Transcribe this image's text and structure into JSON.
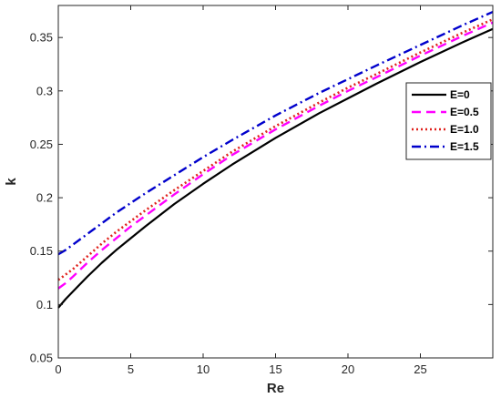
{
  "chart_data": {
    "type": "line",
    "xlabel": "Re",
    "ylabel": "k",
    "xlim": [
      0,
      30
    ],
    "ylim": [
      0.05,
      0.38
    ],
    "xticks": [
      0,
      5,
      10,
      15,
      20,
      25
    ],
    "yticks": [
      0.05,
      0.1,
      0.15,
      0.2,
      0.25,
      0.3,
      0.35
    ],
    "ytick_labels": [
      "0.05",
      "0.1",
      "0.15",
      "0.2",
      "0.25",
      "0.3",
      "0.35"
    ],
    "grid": false,
    "legend_position": "top-right",
    "x": [
      0,
      0.5,
      1,
      2,
      3,
      4,
      5,
      6,
      8,
      10,
      12,
      15,
      18,
      20,
      22,
      25,
      28,
      30
    ],
    "series": [
      {
        "name": "E=0",
        "color": "#000000",
        "dash": "solid",
        "values": [
          0.097,
          0.105,
          0.112,
          0.126,
          0.139,
          0.151,
          0.162,
          0.173,
          0.194,
          0.213,
          0.231,
          0.256,
          0.279,
          0.293,
          0.307,
          0.327,
          0.346,
          0.358
        ]
      },
      {
        "name": "E=0.5",
        "color": "#ff00ff",
        "dash": "dashed",
        "values": [
          0.115,
          0.12,
          0.126,
          0.139,
          0.151,
          0.162,
          0.173,
          0.183,
          0.203,
          0.222,
          0.24,
          0.264,
          0.286,
          0.3,
          0.313,
          0.333,
          0.352,
          0.364
        ]
      },
      {
        "name": "E=1.0",
        "color": "#e0201c",
        "dash": "dotted",
        "values": [
          0.123,
          0.128,
          0.133,
          0.145,
          0.157,
          0.168,
          0.178,
          0.188,
          0.207,
          0.225,
          0.243,
          0.267,
          0.289,
          0.303,
          0.316,
          0.336,
          0.355,
          0.367
        ]
      },
      {
        "name": "E=1.5",
        "color": "#0000cc",
        "dash": "dashdot",
        "values": [
          0.147,
          0.151,
          0.156,
          0.166,
          0.176,
          0.186,
          0.195,
          0.204,
          0.221,
          0.238,
          0.254,
          0.277,
          0.298,
          0.311,
          0.324,
          0.343,
          0.362,
          0.374
        ]
      }
    ]
  }
}
